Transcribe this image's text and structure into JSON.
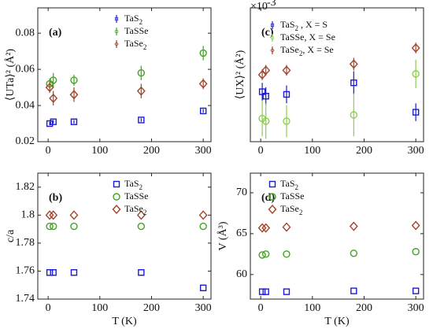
{
  "chart_data": [
    {
      "type": "scatter",
      "panel_label": "(a)",
      "ylabel": "⟨UTa⟩² (Å²)",
      "x": [
        3,
        10,
        50,
        180,
        300
      ],
      "xlim": [
        -20,
        315
      ],
      "xticks": [
        0,
        100,
        200,
        300
      ],
      "ylim": [
        0.02,
        0.094
      ],
      "yticks": [
        0.02,
        0.04,
        0.06,
        0.08
      ],
      "legend": "upper right",
      "series": [
        {
          "name": "TaS2",
          "color": "#1a1ad4",
          "marker": "square",
          "values": [
            0.03,
            0.031,
            0.031,
            0.032,
            0.037
          ],
          "errors": [
            0.001,
            0.001,
            0.001,
            0.001,
            0.001
          ]
        },
        {
          "name": "TaSSe",
          "color": "#3fa51c",
          "marker": "circle",
          "values": [
            0.052,
            0.054,
            0.054,
            0.058,
            0.069
          ],
          "errors": [
            0.003,
            0.004,
            0.003,
            0.004,
            0.004
          ]
        },
        {
          "name": "TaSe2",
          "color": "#a3432a",
          "marker": "diamond",
          "values": [
            0.05,
            0.044,
            0.046,
            0.048,
            0.052
          ],
          "errors": [
            0.003,
            0.004,
            0.004,
            0.004,
            0.003
          ]
        }
      ]
    },
    {
      "type": "scatter",
      "panel_label": "(b)",
      "ylabel": "c/a",
      "xlabel": "T (K)",
      "x": [
        3,
        10,
        50,
        180,
        300
      ],
      "xlim": [
        -20,
        315
      ],
      "xticks": [
        0,
        100,
        200,
        300
      ],
      "ylim": [
        1.74,
        1.83
      ],
      "yticks": [
        1.74,
        1.76,
        1.78,
        1.8,
        1.82
      ],
      "legend": "upper right",
      "series": [
        {
          "name": "TaS2",
          "color": "#1a1ad4",
          "marker": "square",
          "values": [
            1.759,
            1.759,
            1.759,
            1.759,
            1.748
          ]
        },
        {
          "name": "TaSSe",
          "color": "#3fa51c",
          "marker": "circle",
          "values": [
            1.792,
            1.792,
            1.792,
            1.792,
            1.792
          ]
        },
        {
          "name": "TaSe2",
          "color": "#a3432a",
          "marker": "diamond",
          "values": [
            1.8,
            1.8,
            1.8,
            1.8,
            1.8
          ]
        }
      ]
    },
    {
      "type": "scatter",
      "panel_label": "(c)",
      "ylabel": "⟨UX⟩² (Å²)",
      "multiplier": "×10",
      "multiplier_exp": "-3",
      "x": [
        3,
        10,
        50,
        180,
        300
      ],
      "xlim": [
        -20,
        315
      ],
      "xticks": [
        0,
        100,
        200,
        300
      ],
      "ylim": [
        0,
        15
      ],
      "legend": "upper left",
      "series": [
        {
          "name": "TaS2 , X = S",
          "color": "#1a1ad4",
          "marker": "square",
          "values": [
            5.6,
            5.1,
            5.3,
            6.6,
            3.3
          ],
          "errors": [
            1.0,
            1.0,
            1.0,
            1.3,
            1.0
          ]
        },
        {
          "name": "TaSSe, X = Se",
          "color": "#8ccf4a",
          "marker": "circle",
          "values": [
            2.6,
            2.3,
            2.3,
            3.0,
            7.6
          ],
          "errors": [
            2.0,
            2.0,
            1.8,
            2.4,
            1.6
          ]
        },
        {
          "name": "TaSe2, X = Se",
          "color": "#a3432a",
          "marker": "diamond",
          "values": [
            7.5,
            8.0,
            8.0,
            8.7,
            10.5
          ],
          "errors": [
            0.6,
            0.6,
            0.6,
            0.7,
            0.6
          ]
        }
      ]
    },
    {
      "type": "scatter",
      "panel_label": "(d)",
      "ylabel": "V (Å³)",
      "xlabel": "T (K)",
      "x": [
        3,
        10,
        50,
        180,
        300
      ],
      "xlim": [
        -20,
        315
      ],
      "xticks": [
        0,
        100,
        200,
        300
      ],
      "ylim": [
        57,
        72.4
      ],
      "yticks": [
        60,
        65,
        70
      ],
      "legend": "upper left",
      "series": [
        {
          "name": "TaS2",
          "color": "#1a1ad4",
          "marker": "square",
          "values": [
            57.9,
            57.9,
            57.9,
            58.0,
            58.0
          ]
        },
        {
          "name": "TaSSe",
          "color": "#3fa51c",
          "marker": "circle",
          "values": [
            62.4,
            62.5,
            62.5,
            62.6,
            62.8
          ]
        },
        {
          "name": "TaSe2",
          "color": "#a3432a",
          "marker": "diamond",
          "values": [
            65.7,
            65.7,
            65.8,
            65.9,
            66.0
          ]
        }
      ]
    }
  ]
}
